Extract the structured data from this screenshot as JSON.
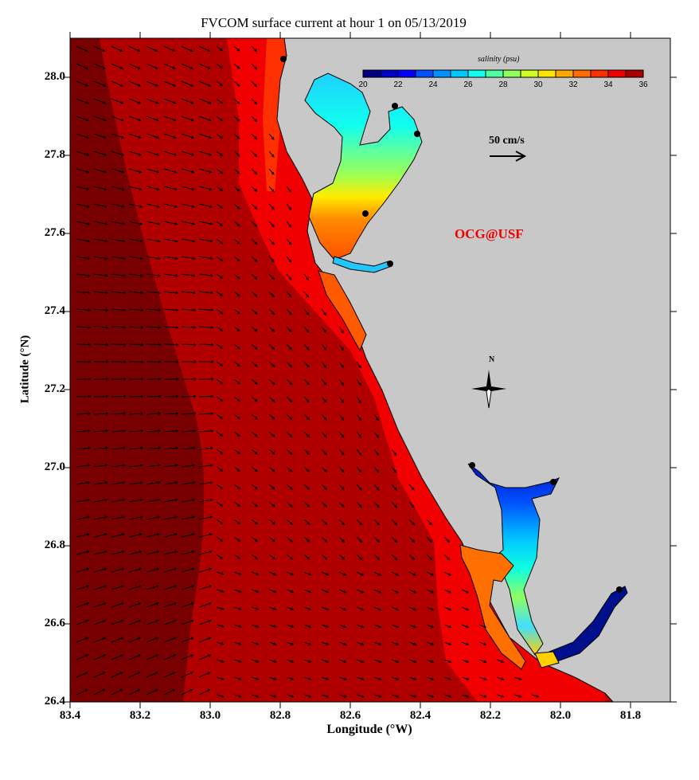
{
  "title": "FVCOM surface current at hour 1 on 05/13/2019",
  "xaxis": {
    "label": "Longitude (°W)",
    "ticks": [
      "83.4",
      "83.2",
      "83.0",
      "82.8",
      "82.6",
      "82.4",
      "82.2",
      "82.0",
      "81.8"
    ],
    "range": [
      83.4,
      81.686
    ]
  },
  "yaxis": {
    "label": "Latitude (°N)",
    "ticks": [
      "28.0",
      "27.8",
      "27.6",
      "27.4",
      "27.2",
      "27.0",
      "26.8",
      "26.6",
      "26.4"
    ],
    "range": [
      26.4,
      28.1
    ]
  },
  "colorbar": {
    "title": "salinity (psu)",
    "ticks": [
      "20",
      "22",
      "24",
      "26",
      "28",
      "30",
      "32",
      "34",
      "36"
    ],
    "colors": [
      "#00007f",
      "#0000c8",
      "#0000ff",
      "#0050ff",
      "#0090ff",
      "#00c8ff",
      "#10ffef",
      "#50ffa0",
      "#90ff60",
      "#d0ff20",
      "#ffe600",
      "#ffa800",
      "#ff6c00",
      "#ff3000",
      "#ee0000",
      "#a80000"
    ]
  },
  "scale_arrow": {
    "label": "50 cm/s",
    "value_cm_s": 50
  },
  "credit": "OCG@USF",
  "compass": {
    "label": "N"
  },
  "colors": {
    "land": "#c8c8c8",
    "offshore_dark": "#780000",
    "offshore": "#b00000",
    "nearshore": "#f00000"
  }
}
